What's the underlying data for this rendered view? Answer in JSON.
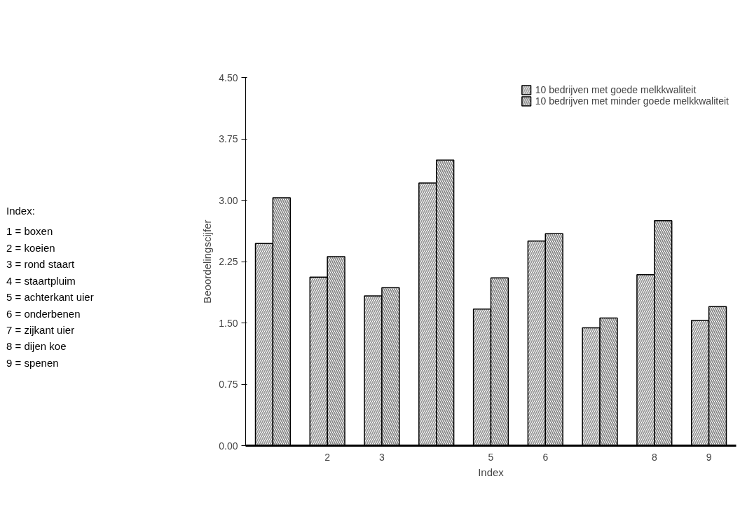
{
  "chart_data": {
    "type": "bar",
    "xlabel": "Index",
    "ylabel": "Beoordelingscijfer",
    "categories": [
      null,
      "2",
      "3",
      null,
      "5",
      "6",
      null,
      "8",
      "9"
    ],
    "series": [
      {
        "name": "10 bedrijven met goede melkkwaliteit",
        "color": "#9a9a9a",
        "values": [
          2.47,
          2.06,
          1.83,
          3.21,
          1.67,
          2.5,
          1.44,
          2.09,
          1.53
        ]
      },
      {
        "name": "10 bedrijven met minder goede melkkwaliteit",
        "color": "#8a8a8a",
        "values": [
          3.03,
          2.31,
          1.93,
          3.49,
          2.05,
          2.59,
          1.56,
          2.75,
          1.7
        ]
      }
    ],
    "ylim": [
      0,
      4.5
    ],
    "yticks": [
      {
        "value": 0,
        "label": "0.00"
      },
      {
        "value": 0.75,
        "label": "0.75"
      },
      {
        "value": 1.5,
        "label": "1.50"
      },
      {
        "value": 2.25,
        "label": "2.25"
      },
      {
        "value": 3,
        "label": "3.00"
      },
      {
        "value": 3.75,
        "label": "3.75"
      },
      {
        "value": 4.5,
        "label": "4.50"
      }
    ],
    "grid": false,
    "legend": "top right",
    "annotations": [
      "Index:",
      "1 = boxen",
      "2 = koeien",
      "3 = rond staart",
      "4 = staartpluim",
      "5 = achterkant uier",
      "6 = onderbenen",
      "7 = zijkant uier",
      "8 = dijen koe",
      "9 = spenen"
    ]
  }
}
